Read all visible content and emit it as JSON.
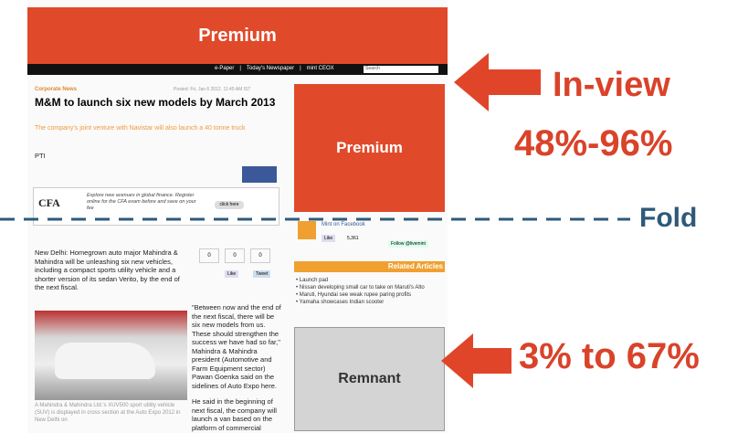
{
  "banner_top": "Premium",
  "nav": {
    "items": [
      "e-Paper",
      "Today's Newspaper",
      "mint CEOX"
    ],
    "search": "Search"
  },
  "article": {
    "section": "Corporate News",
    "date": "Posted: Fri, Jan 6 2012. 11:45 AM IST",
    "title": "M&M to launch six new models by March 2013",
    "subtitle": "The company's joint venture with Navistar will also launch a 40 tonne truck",
    "byline": "PTI",
    "ad": {
      "text": "Explore new avenues in global finance. Register online for the CFA exam before and save on your fee",
      "button": "click here"
    },
    "share": {
      "counts": [
        "0",
        "0",
        "0"
      ],
      "like": "Like",
      "tweet": "Tweet"
    },
    "body": [
      "New Delhi: Homegrown auto major Mahindra & Mahindra will be unleashing six new vehicles, including a compact sports utility vehicle and a shorter version of its sedan Verito, by the end of the next fiscal.",
      "\"Between now and the end of the next fiscal, there will be six new models from us. These should strengthen the success we have had so far,\" Mahindra & Mahindra president (Automotive and Farm Equipment sector) Pawan Goenka said on the sidelines of Auto Expo here.",
      "He said in the beginning of next fiscal, the company will launch a van based on the platform of commercial"
    ],
    "caption": "A Mahindra & Mahindra Ltd.'s XUV500 sport utility vehicle (SUV) is displayed in cross section at the Auto Expo 2012 in New Delhi on"
  },
  "sidebar": {
    "side_ad": "Premium",
    "facebook": "Mint on Facebook",
    "like": "Like",
    "like_count": "5,361",
    "follow": "Follow @livemint",
    "related_title": "Related Articles",
    "related": [
      "Launch pad",
      "Nissan developing small car to take on Maruti's Alto",
      "Maruti, Hyundai see weak rupee paring profits",
      "Yamaha showcases Indian scooter"
    ],
    "remnant": "Remnant"
  },
  "annotations": {
    "in_view": "In-view",
    "in_view_range": "48%-96%",
    "fold": "Fold",
    "remnant_range": "3% to 67%"
  }
}
